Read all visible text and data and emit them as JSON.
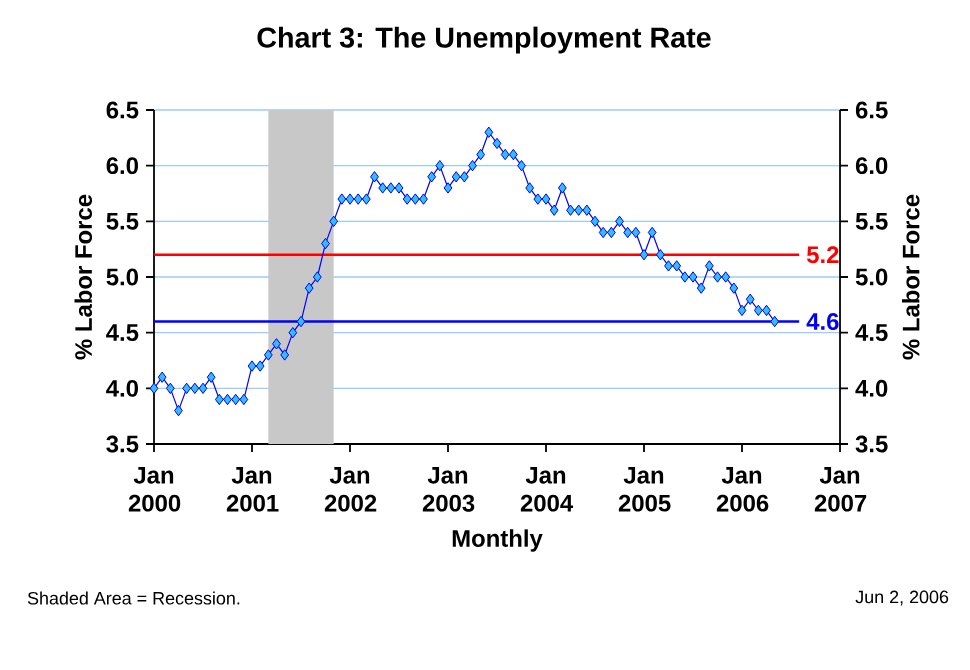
{
  "chart_data": {
    "type": "line",
    "title": "Chart 3: The Unemployment Rate",
    "xlabel": "Monthly",
    "ylabel": "% Labor Force",
    "y2label": "% Labor Force",
    "x": [
      "2000-01",
      "2000-02",
      "2000-03",
      "2000-04",
      "2000-05",
      "2000-06",
      "2000-07",
      "2000-08",
      "2000-09",
      "2000-10",
      "2000-11",
      "2000-12",
      "2001-01",
      "2001-02",
      "2001-03",
      "2001-04",
      "2001-05",
      "2001-06",
      "2001-07",
      "2001-08",
      "2001-09",
      "2001-10",
      "2001-11",
      "2001-12",
      "2002-01",
      "2002-02",
      "2002-03",
      "2002-04",
      "2002-05",
      "2002-06",
      "2002-07",
      "2002-08",
      "2002-09",
      "2002-10",
      "2002-11",
      "2002-12",
      "2003-01",
      "2003-02",
      "2003-03",
      "2003-04",
      "2003-05",
      "2003-06",
      "2003-07",
      "2003-08",
      "2003-09",
      "2003-10",
      "2003-11",
      "2003-12",
      "2004-01",
      "2004-02",
      "2004-03",
      "2004-04",
      "2004-05",
      "2004-06",
      "2004-07",
      "2004-08",
      "2004-09",
      "2004-10",
      "2004-11",
      "2004-12",
      "2005-01",
      "2005-02",
      "2005-03",
      "2005-04",
      "2005-05",
      "2005-06",
      "2005-07",
      "2005-08",
      "2005-09",
      "2005-10",
      "2005-11",
      "2005-12",
      "2006-01",
      "2006-02",
      "2006-03",
      "2006-04",
      "2006-05"
    ],
    "series": [
      {
        "color": "#0000ff",
        "values": [
          4.0,
          4.1,
          4.0,
          3.8,
          4.0,
          4.0,
          4.0,
          4.1,
          3.9,
          3.9,
          3.9,
          3.9,
          4.2,
          4.2,
          4.3,
          4.4,
          4.3,
          4.5,
          4.6,
          4.9,
          5.0,
          5.3,
          5.5,
          5.7,
          5.7,
          5.7,
          5.7,
          5.9,
          5.8,
          5.8,
          5.8,
          5.7,
          5.7,
          5.7,
          5.9,
          6.0,
          5.8,
          5.9,
          5.9,
          6.0,
          6.1,
          6.3,
          6.2,
          6.1,
          6.1,
          6.0,
          5.8,
          5.7,
          5.7,
          5.6,
          5.8,
          5.6,
          5.6,
          5.6,
          5.5,
          5.4,
          5.4,
          5.5,
          5.4,
          5.4,
          5.2,
          5.4,
          5.2,
          5.1,
          5.1,
          5.0,
          5.0,
          4.9,
          5.1,
          5.0,
          5.0,
          4.9,
          4.7,
          4.8,
          4.7,
          4.7,
          4.6
        ]
      }
    ],
    "marker": "diamond",
    "line_style": "solid",
    "grid": "y",
    "xlim": [
      "2000-01",
      "2007-01"
    ],
    "xticks": [
      {
        "value": "2000-01",
        "label": "Jan 2000"
      },
      {
        "value": "2001-01",
        "label": "Jan 2001"
      },
      {
        "value": "2002-01",
        "label": "Jan 2002"
      },
      {
        "value": "2003-01",
        "label": "Jan 2003"
      },
      {
        "value": "2004-01",
        "label": "Jan 2004"
      },
      {
        "value": "2005-01",
        "label": "Jan 2005"
      },
      {
        "value": "2006-01",
        "label": "Jan 2006"
      },
      {
        "value": "2007-01",
        "label": "Jan 2007"
      }
    ],
    "ylim": [
      3.5,
      6.5
    ],
    "yticks": [
      {
        "value": 3.5,
        "label": "3.5"
      },
      {
        "value": 4,
        "label": "4.0"
      },
      {
        "value": 4.5,
        "label": "4.5"
      },
      {
        "value": 5,
        "label": "5.0"
      },
      {
        "value": 5.5,
        "label": "5.5"
      },
      {
        "value": 6,
        "label": "6.0"
      },
      {
        "value": 6.5,
        "label": "6.5"
      }
    ],
    "y2lim": [
      3.5,
      6.5
    ],
    "y2ticks": [
      {
        "value": 3.5,
        "label": "3.5"
      },
      {
        "value": 4,
        "label": "4.0"
      },
      {
        "value": 4.5,
        "label": "4.5"
      },
      {
        "value": 5,
        "label": "5.0"
      },
      {
        "value": 5.5,
        "label": "5.5"
      },
      {
        "value": 6,
        "label": "6.0"
      },
      {
        "value": 6.5,
        "label": "6.5"
      }
    ],
    "bands": [
      {
        "axis": "x",
        "from": "2001-03",
        "to": "2001-11",
        "color": "#c8c8c8"
      }
    ],
    "ref_lines": [
      {
        "axis": "y",
        "value": 5.2,
        "label": "5.2",
        "color": "#ff0000"
      },
      {
        "axis": "y",
        "value": 4.6,
        "label": "4.6",
        "color": "#0000ff"
      }
    ],
    "annotations": [
      "Shaded Area = Recession.",
      "Jun 2, 2006"
    ]
  }
}
